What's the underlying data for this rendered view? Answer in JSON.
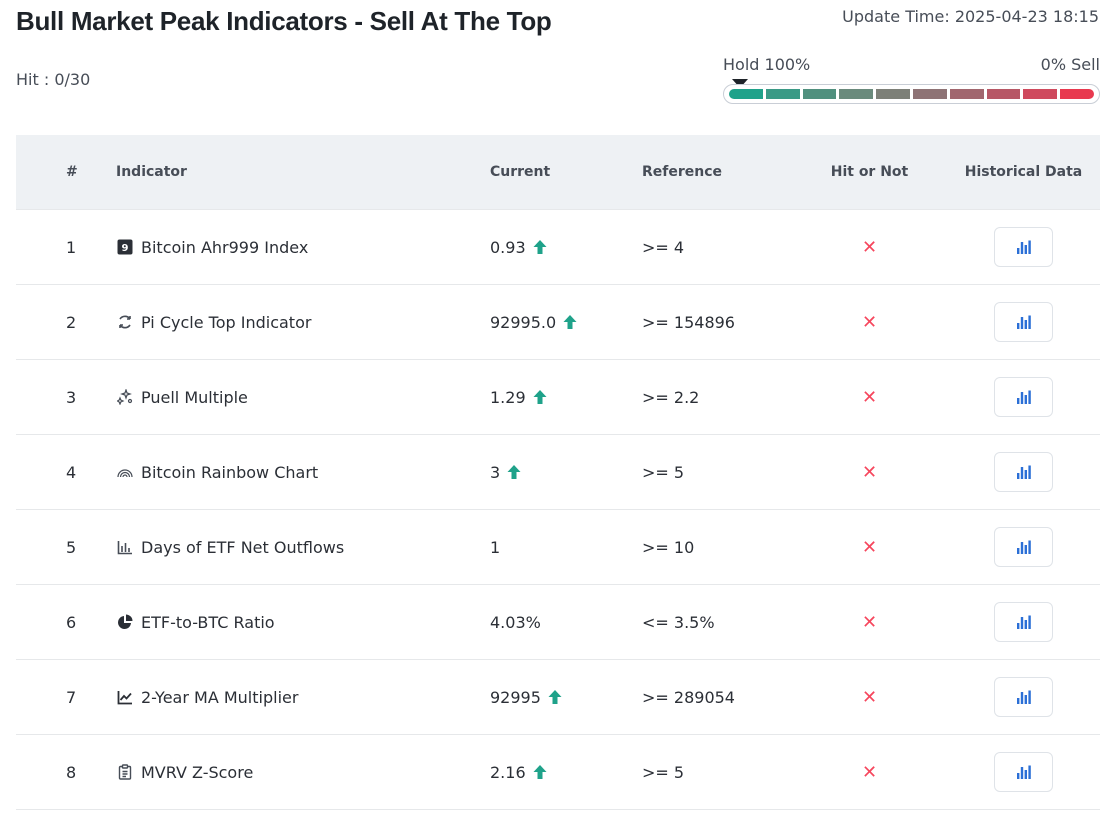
{
  "title": "Bull Market Peak Indicators - Sell At The Top",
  "update_time": "Update Time: 2025-04-23 18:15",
  "hit": "Hit : 0/30",
  "gauge": {
    "left_label": "Hold 100%",
    "right_label": "0% Sell",
    "level_percent": 0,
    "segment_colors": [
      "#1fa28a",
      "#3a9a86",
      "#50907e",
      "#6a8a7c",
      "#7d8078",
      "#8e7375",
      "#a1666e",
      "#b75766",
      "#cf4a5e",
      "#e8394f"
    ]
  },
  "table": {
    "headers": {
      "num": "#",
      "indicator": "Indicator",
      "current": "Current",
      "reference": "Reference",
      "hit": "Hit or Not",
      "history": "Historical Data"
    },
    "rows": [
      {
        "num": "1",
        "icon": "nine-badge-icon",
        "name": "Bitcoin Ahr999 Index",
        "current": "0.93",
        "trend": "up",
        "reference": ">= 4",
        "hit": "✕"
      },
      {
        "num": "2",
        "icon": "cycle-icon",
        "name": "Pi Cycle Top Indicator",
        "current": "92995.0",
        "trend": "up",
        "reference": ">= 154896",
        "hit": "✕"
      },
      {
        "num": "3",
        "icon": "sparkle-icon",
        "name": "Puell Multiple",
        "current": "1.29",
        "trend": "up",
        "reference": ">= 2.2",
        "hit": "✕"
      },
      {
        "num": "4",
        "icon": "rainbow-icon",
        "name": "Bitcoin Rainbow Chart",
        "current": "3",
        "trend": "up",
        "reference": ">= 5",
        "hit": "✕"
      },
      {
        "num": "5",
        "icon": "bar-chart-icon",
        "name": "Days of ETF Net Outflows",
        "current": "1",
        "trend": "none",
        "reference": ">= 10",
        "hit": "✕"
      },
      {
        "num": "6",
        "icon": "pie-chart-icon",
        "name": "ETF-to-BTC Ratio",
        "current": "4.03%",
        "trend": "none",
        "reference": "<= 3.5%",
        "hit": "✕"
      },
      {
        "num": "7",
        "icon": "line-chart-icon",
        "name": "2-Year MA Multiplier",
        "current": "92995",
        "trend": "up",
        "reference": ">= 289054",
        "hit": "✕"
      },
      {
        "num": "8",
        "icon": "clipboard-icon",
        "name": "MVRV Z-Score",
        "current": "2.16",
        "trend": "up",
        "reference": ">= 5",
        "hit": "✕"
      }
    ]
  },
  "colors": {
    "up_arrow": "#1fa28a",
    "miss_x": "#f6465d",
    "history_icon": "#2b6fd6"
  }
}
